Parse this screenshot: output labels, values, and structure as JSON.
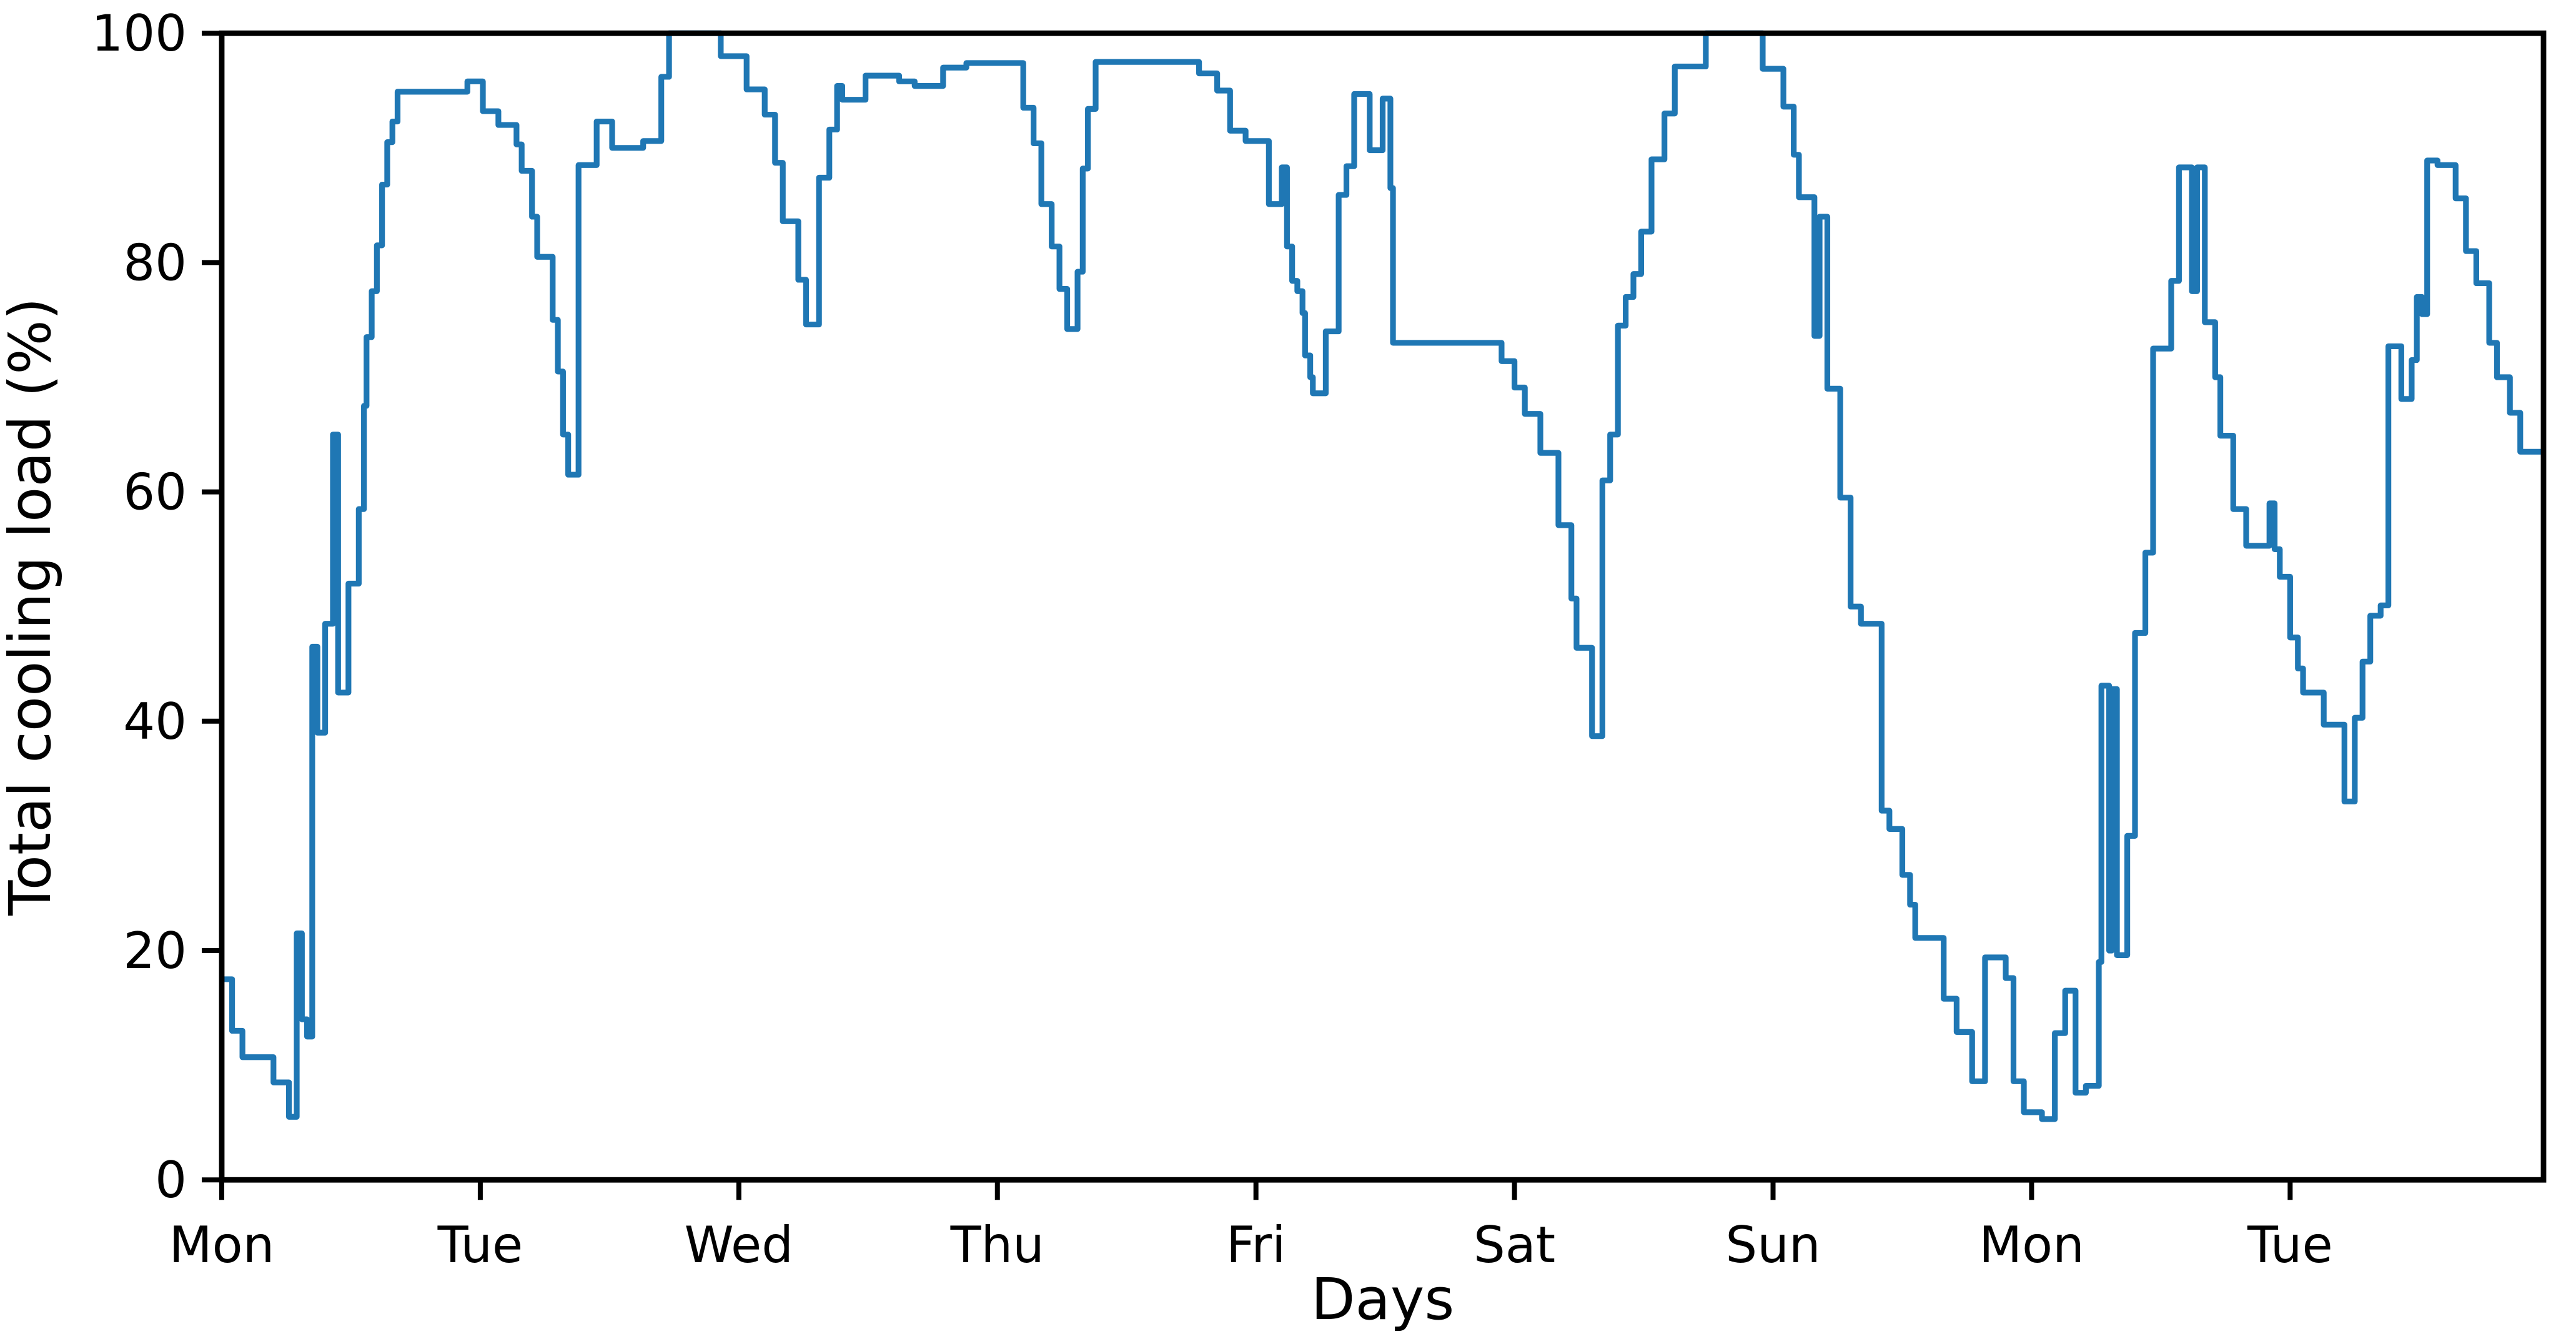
{
  "chart_data": {
    "type": "line",
    "step": "post",
    "title": "",
    "xlabel": "Days",
    "ylabel": "Total cooling load (%)",
    "x_unit": "days",
    "xlim": [
      0,
      8.98
    ],
    "ylim": [
      0,
      100
    ],
    "x_tick_positions": [
      0,
      1,
      2,
      3,
      4,
      5,
      6,
      7,
      8
    ],
    "x_tick_labels": [
      "Mon",
      "Tue",
      "Wed",
      "Thu",
      "Fri",
      "Sat",
      "Sun",
      "Mon",
      "Tue"
    ],
    "y_tick_positions": [
      0,
      20,
      40,
      60,
      80,
      100
    ],
    "y_tick_labels": [
      "0",
      "20",
      "40",
      "60",
      "80",
      "100"
    ],
    "grid": false,
    "legend": false,
    "background_color": "#ffffff",
    "axis_color": "#000000",
    "series": [
      {
        "name": "Total cooling load",
        "color": "#1f77b4",
        "points": [
          [
            0.0,
            17.5
          ],
          [
            0.04,
            13
          ],
          [
            0.08,
            10.7
          ],
          [
            0.2,
            8.5
          ],
          [
            0.26,
            5.5
          ],
          [
            0.29,
            21.5
          ],
          [
            0.31,
            14
          ],
          [
            0.33,
            12.5
          ],
          [
            0.35,
            46.5
          ],
          [
            0.37,
            39
          ],
          [
            0.4,
            48.5
          ],
          [
            0.43,
            65
          ],
          [
            0.45,
            42.5
          ],
          [
            0.49,
            52
          ],
          [
            0.53,
            58.5
          ],
          [
            0.55,
            67.5
          ],
          [
            0.56,
            73.5
          ],
          [
            0.58,
            77.5
          ],
          [
            0.6,
            81.5
          ],
          [
            0.62,
            86.8
          ],
          [
            0.64,
            90.5
          ],
          [
            0.66,
            92.3
          ],
          [
            0.68,
            94.9
          ],
          [
            0.95,
            95.8
          ],
          [
            1.01,
            93.2
          ],
          [
            1.07,
            92
          ],
          [
            1.14,
            90.3
          ],
          [
            1.16,
            88
          ],
          [
            1.2,
            84
          ],
          [
            1.22,
            80.5
          ],
          [
            1.28,
            75
          ],
          [
            1.3,
            70.5
          ],
          [
            1.32,
            65
          ],
          [
            1.34,
            61.5
          ],
          [
            1.38,
            88.5
          ],
          [
            1.45,
            92.3
          ],
          [
            1.51,
            90
          ],
          [
            1.63,
            90.6
          ],
          [
            1.7,
            96.2
          ],
          [
            1.73,
            100
          ],
          [
            1.93,
            98
          ],
          [
            2.03,
            95.1
          ],
          [
            2.1,
            92.9
          ],
          [
            2.14,
            88.7
          ],
          [
            2.17,
            83.6
          ],
          [
            2.23,
            78.5
          ],
          [
            2.26,
            74.6
          ],
          [
            2.31,
            87.4
          ],
          [
            2.35,
            91.6
          ],
          [
            2.38,
            95.4
          ],
          [
            2.4,
            94.2
          ],
          [
            2.49,
            96.3
          ],
          [
            2.62,
            95.8
          ],
          [
            2.68,
            95.4
          ],
          [
            2.79,
            97
          ],
          [
            2.88,
            97.4
          ],
          [
            3.1,
            93.5
          ],
          [
            3.14,
            90.4
          ],
          [
            3.17,
            85.1
          ],
          [
            3.21,
            81.4
          ],
          [
            3.24,
            77.7
          ],
          [
            3.27,
            74.2
          ],
          [
            3.31,
            79.2
          ],
          [
            3.33,
            88.2
          ],
          [
            3.35,
            93.4
          ],
          [
            3.38,
            97.5
          ],
          [
            3.78,
            96.5
          ],
          [
            3.85,
            95
          ],
          [
            3.9,
            91.5
          ],
          [
            3.96,
            90.6
          ],
          [
            4.05,
            85.1
          ],
          [
            4.1,
            88.3
          ],
          [
            4.12,
            81.4
          ],
          [
            4.14,
            78.4
          ],
          [
            4.16,
            77.5
          ],
          [
            4.18,
            75.6
          ],
          [
            4.19,
            71.9
          ],
          [
            4.21,
            70
          ],
          [
            4.22,
            68.6
          ],
          [
            4.27,
            74
          ],
          [
            4.32,
            85.9
          ],
          [
            4.35,
            88.4
          ],
          [
            4.38,
            94.7
          ],
          [
            4.44,
            89.8
          ],
          [
            4.49,
            94.3
          ],
          [
            4.52,
            86.5
          ],
          [
            4.53,
            73
          ],
          [
            4.95,
            71.4
          ],
          [
            5.0,
            69.1
          ],
          [
            5.04,
            66.8
          ],
          [
            5.1,
            63.4
          ],
          [
            5.17,
            57.1
          ],
          [
            5.22,
            50.7
          ],
          [
            5.24,
            46.4
          ],
          [
            5.3,
            38.7
          ],
          [
            5.34,
            61
          ],
          [
            5.37,
            65
          ],
          [
            5.4,
            74.5
          ],
          [
            5.43,
            77
          ],
          [
            5.46,
            79
          ],
          [
            5.49,
            82.7
          ],
          [
            5.53,
            89
          ],
          [
            5.58,
            93
          ],
          [
            5.62,
            97.1
          ],
          [
            5.74,
            100
          ],
          [
            5.96,
            96.9
          ],
          [
            6.04,
            93.6
          ],
          [
            6.08,
            89.4
          ],
          [
            6.1,
            85.7
          ],
          [
            6.16,
            73.6
          ],
          [
            6.18,
            84
          ],
          [
            6.21,
            69
          ],
          [
            6.26,
            59.5
          ],
          [
            6.3,
            50
          ],
          [
            6.34,
            48.5
          ],
          [
            6.42,
            32.2
          ],
          [
            6.45,
            30.6
          ],
          [
            6.5,
            26.6
          ],
          [
            6.53,
            24
          ],
          [
            6.55,
            21.1
          ],
          [
            6.66,
            15.8
          ],
          [
            6.71,
            12.9
          ],
          [
            6.77,
            8.6
          ],
          [
            6.82,
            19.4
          ],
          [
            6.9,
            17.6
          ],
          [
            6.93,
            8.6
          ],
          [
            6.97,
            5.9
          ],
          [
            7.04,
            5.3
          ],
          [
            7.09,
            12.8
          ],
          [
            7.13,
            16.5
          ],
          [
            7.17,
            7.6
          ],
          [
            7.21,
            8.2
          ],
          [
            7.26,
            19
          ],
          [
            7.27,
            43.1
          ],
          [
            7.3,
            20
          ],
          [
            7.31,
            42.8
          ],
          [
            7.33,
            19.6
          ],
          [
            7.37,
            30
          ],
          [
            7.4,
            47.7
          ],
          [
            7.44,
            54.7
          ],
          [
            7.47,
            72.5
          ],
          [
            7.54,
            78.4
          ],
          [
            7.57,
            88.3
          ],
          [
            7.62,
            77.5
          ],
          [
            7.64,
            88.3
          ],
          [
            7.67,
            74.8
          ],
          [
            7.71,
            70
          ],
          [
            7.73,
            64.9
          ],
          [
            7.78,
            58.5
          ],
          [
            7.83,
            55.3
          ],
          [
            7.92,
            59
          ],
          [
            7.94,
            55
          ],
          [
            7.96,
            52.6
          ],
          [
            8.0,
            47.3
          ],
          [
            8.03,
            44.6
          ],
          [
            8.05,
            42.5
          ],
          [
            8.13,
            39.7
          ],
          [
            8.21,
            33
          ],
          [
            8.25,
            40.3
          ],
          [
            8.28,
            45.2
          ],
          [
            8.31,
            49.2
          ],
          [
            8.35,
            50.1
          ],
          [
            8.38,
            72.7
          ],
          [
            8.43,
            68.1
          ],
          [
            8.47,
            71.5
          ],
          [
            8.49,
            77
          ],
          [
            8.51,
            75.5
          ],
          [
            8.53,
            88.9
          ],
          [
            8.57,
            88.5
          ],
          [
            8.64,
            85.6
          ],
          [
            8.68,
            81
          ],
          [
            8.72,
            78.2
          ],
          [
            8.77,
            73
          ],
          [
            8.8,
            70
          ],
          [
            8.85,
            66.9
          ],
          [
            8.89,
            63.5
          ]
        ]
      }
    ]
  }
}
